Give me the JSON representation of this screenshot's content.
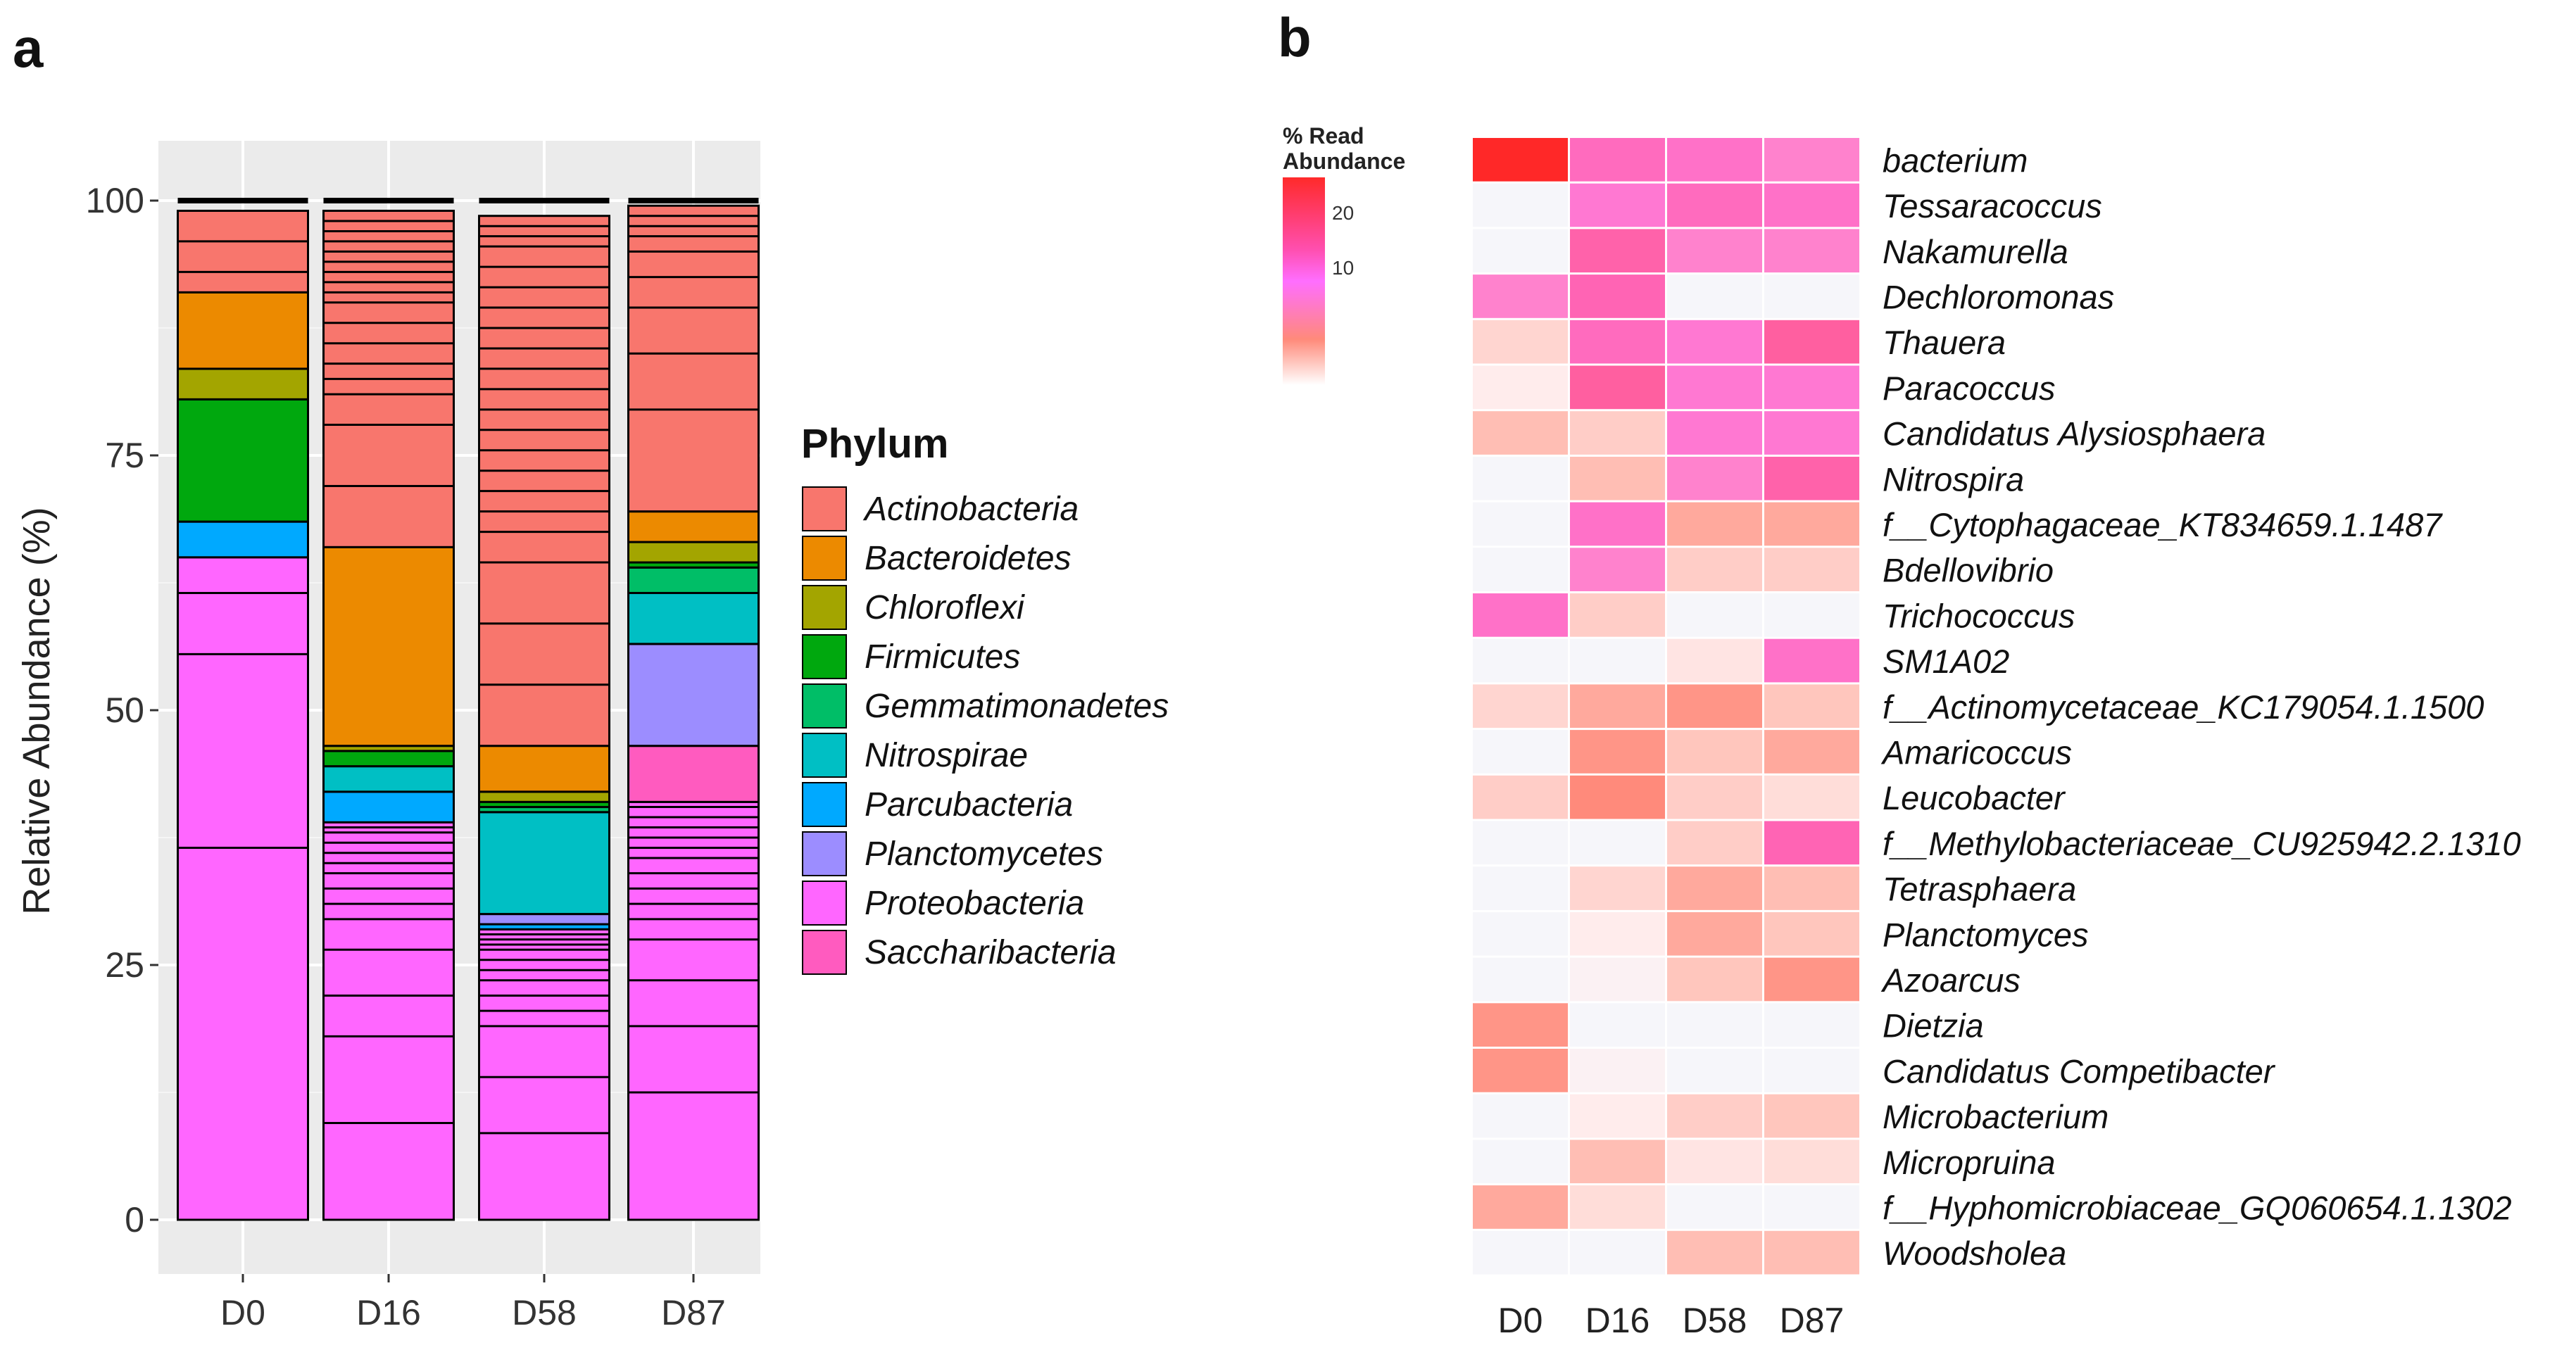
{
  "panels": {
    "a_label": "a",
    "b_label": "b"
  },
  "chart_data": [
    {
      "type": "stacked-bar",
      "title": "",
      "xlabel": "",
      "ylabel": "Relative Abundance (%)",
      "ylim": [
        0,
        100
      ],
      "yticks": [
        "0",
        "25",
        "50",
        "75",
        "100"
      ],
      "grid": true,
      "legend_title": "Phylum",
      "legend_position": "right",
      "categories": [
        "D0",
        "D16",
        "D58",
        "D87"
      ],
      "series": [
        {
          "name": "Proteobacteria",
          "color": "#ff66ff",
          "values": [
            65.0,
            39.0,
            28.5,
            41.0
          ],
          "subdivisions": [
            [
              36.5,
              55.5,
              61.5
            ],
            [
              9.5,
              18,
              22,
              26.5,
              29.5,
              31,
              32.5,
              34,
              35,
              36,
              37,
              38,
              38.5
            ],
            [
              8.5,
              14,
              19,
              20.5,
              22,
              23.5,
              24.5,
              25.5,
              26.5,
              27,
              27.5,
              28
            ],
            [
              12.5,
              19,
              23.5,
              27.5,
              29.5,
              31,
              32.5,
              34,
              35.5,
              36.5,
              37.5,
              38.5,
              39.5,
              40.5
            ]
          ]
        },
        {
          "name": "Saccharibacteria",
          "color": "#ff5bbf",
          "values": [
            0.0,
            0.0,
            0.0,
            5.5
          ]
        },
        {
          "name": "Parcubacteria",
          "color": "#00a9ff",
          "values": [
            3.5,
            3.0,
            0.5,
            0.0
          ]
        },
        {
          "name": "Planctomycetes",
          "color": "#9c8dff",
          "values": [
            0.0,
            0.0,
            1.0,
            10.0
          ]
        },
        {
          "name": "Nitrospirae",
          "color": "#00bfc4",
          "values": [
            0.0,
            2.5,
            10.0,
            5.0
          ]
        },
        {
          "name": "Gemmatimonadetes",
          "color": "#00be67",
          "values": [
            0.0,
            0.0,
            0.5,
            2.5
          ]
        },
        {
          "name": "Firmicutes",
          "color": "#00a80e",
          "values": [
            12.0,
            1.5,
            0.5,
            0.5
          ]
        },
        {
          "name": "Chloroflexi",
          "color": "#a3a500",
          "values": [
            3.0,
            0.5,
            1.0,
            2.0
          ]
        },
        {
          "name": "Bacteroidetes",
          "color": "#ec8a00",
          "values": [
            7.5,
            19.5,
            4.5,
            3.0
          ]
        },
        {
          "name": "Actinobacteria",
          "color": "#f8766d",
          "values": [
            8.0,
            33.0,
            52.0,
            30.0
          ],
          "subdivisions": [
            [
              2,
              5
            ],
            [
              6,
              12,
              15,
              16.5,
              18,
              20,
              22,
              24,
              25,
              26,
              27,
              28,
              29,
              30,
              31,
              32
            ],
            [
              6,
              12,
              18,
              21,
              23,
              25,
              27,
              29,
              31,
              33,
              35,
              37,
              39,
              41,
              43,
              45,
              47,
              49,
              50,
              51
            ],
            [
              10,
              15.5,
              20,
              23,
              25.5,
              27,
              28,
              29
            ]
          ]
        }
      ],
      "legend_order": [
        "Actinobacteria",
        "Bacteroidetes",
        "Chloroflexi",
        "Firmicutes",
        "Gemmatimonadetes",
        "Nitrospirae",
        "Parcubacteria",
        "Planctomycetes",
        "Proteobacteria",
        "Saccharibacteria"
      ]
    },
    {
      "type": "heatmap",
      "title": "",
      "columns": [
        "D0",
        "D16",
        "D58",
        "D87"
      ],
      "rows": [
        "bacterium",
        "Tessaracoccus",
        "Nakamurella",
        "Dechloromonas",
        "Thauera",
        "Paracoccus",
        "Candidatus Alysiosphaera",
        "Nitrospira",
        "f__Cytophagaceae_KT834659.1.1487",
        "Bdellovibrio",
        "Trichococcus",
        "SM1A02",
        "f__Actinomycetaceae_KC179054.1.1500",
        "Amaricoccus",
        "Leucobacter",
        "f__Methylobacteriaceae_CU925942.2.1310",
        "Tetrasphaera",
        "Planctomyces",
        "Azoarcus",
        "Dietzia",
        "Candidatus Competibacter",
        "Microbacterium",
        "Micropruina",
        "f__Hyphomicrobiaceae_GQ060654.1.1302",
        "Woodsholea"
      ],
      "values": [
        [
          25,
          13,
          12,
          10
        ],
        [
          0,
          11,
          13,
          12
        ],
        [
          0,
          15,
          10,
          10
        ],
        [
          10,
          14,
          0,
          0
        ],
        [
          2.5,
          13,
          11,
          16
        ],
        [
          1,
          16,
          11,
          11
        ],
        [
          4,
          3,
          11,
          11
        ],
        [
          0,
          4,
          10,
          15
        ],
        [
          0,
          12,
          5,
          5
        ],
        [
          0,
          10,
          3,
          3
        ],
        [
          12,
          3,
          0,
          0
        ],
        [
          0,
          0,
          1.5,
          12
        ],
        [
          2.5,
          5,
          6,
          3.5
        ],
        [
          0,
          6,
          3.5,
          5
        ],
        [
          3,
          6.5,
          3,
          2
        ],
        [
          0,
          0,
          3,
          14
        ],
        [
          0,
          2.5,
          5,
          4
        ],
        [
          0,
          1,
          5,
          3.5
        ],
        [
          0,
          0.5,
          3.5,
          6
        ],
        [
          6,
          0,
          0,
          0
        ],
        [
          6,
          0.5,
          0,
          0
        ],
        [
          0,
          1,
          3,
          3.5
        ],
        [
          0,
          4,
          1.5,
          2
        ],
        [
          5,
          2,
          0,
          0
        ],
        [
          0,
          0,
          4,
          4
        ]
      ],
      "colorbar": {
        "title_line1": "% Read",
        "title_line2": "Abundance",
        "ticks": [
          "20",
          "10"
        ],
        "range": [
          0,
          25
        ]
      }
    }
  ]
}
